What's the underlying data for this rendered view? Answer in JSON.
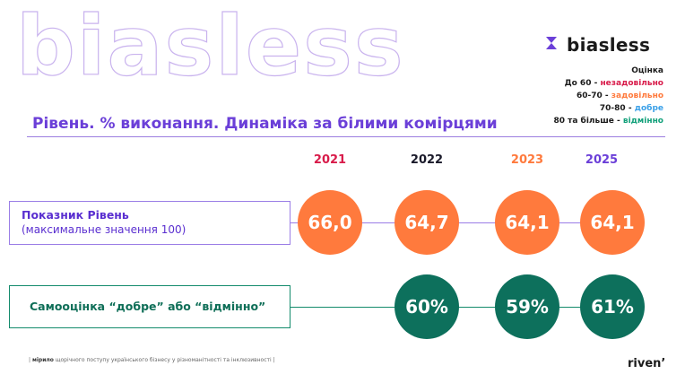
{
  "watermark": "biasless",
  "brand": {
    "name": "biasless",
    "icon": "hourglass-logo-icon",
    "color": "#6b3fd8"
  },
  "legend": {
    "heading": "Оцінка",
    "items": [
      {
        "range": "До 60 - ",
        "label": "незадовільно",
        "color": "#d81b4a"
      },
      {
        "range": "60-70 - ",
        "label": "задовільно",
        "color": "#ff7a3d"
      },
      {
        "range": "70-80 - ",
        "label": "добре",
        "color": "#3aa0e8"
      },
      {
        "range": "80 та більше - ",
        "label": "відмінно",
        "color": "#12a07a"
      }
    ]
  },
  "title": "Рівень. % виконання. Динаміка за білими комірцями",
  "chart_data": {
    "type": "table",
    "years": [
      {
        "label": "2021",
        "color": "#d81b4a"
      },
      {
        "label": "2022",
        "color": "#1a1a2a"
      },
      {
        "label": "2023",
        "color": "#ff7a3d"
      },
      {
        "label": "2025",
        "color": "#6b3fd8"
      }
    ],
    "rows": [
      {
        "label_line1": "Показник Рівень",
        "label_line2": "(максимальне значення 100)",
        "color": "#ff7a3d",
        "values": [
          "66,0",
          "64,7",
          "64,1",
          "64,1"
        ]
      },
      {
        "label_line1": "Самооцінка “добре” або “відмінно”",
        "color": "#0d705c",
        "values": [
          null,
          "60%",
          "59%",
          "61%"
        ]
      }
    ]
  },
  "footer": {
    "prefix": "| ",
    "strong": "мірило",
    "text": " щорічного поступу українського бізнесу у різноманітності та інклюзивності |"
  },
  "riven": "riven’"
}
